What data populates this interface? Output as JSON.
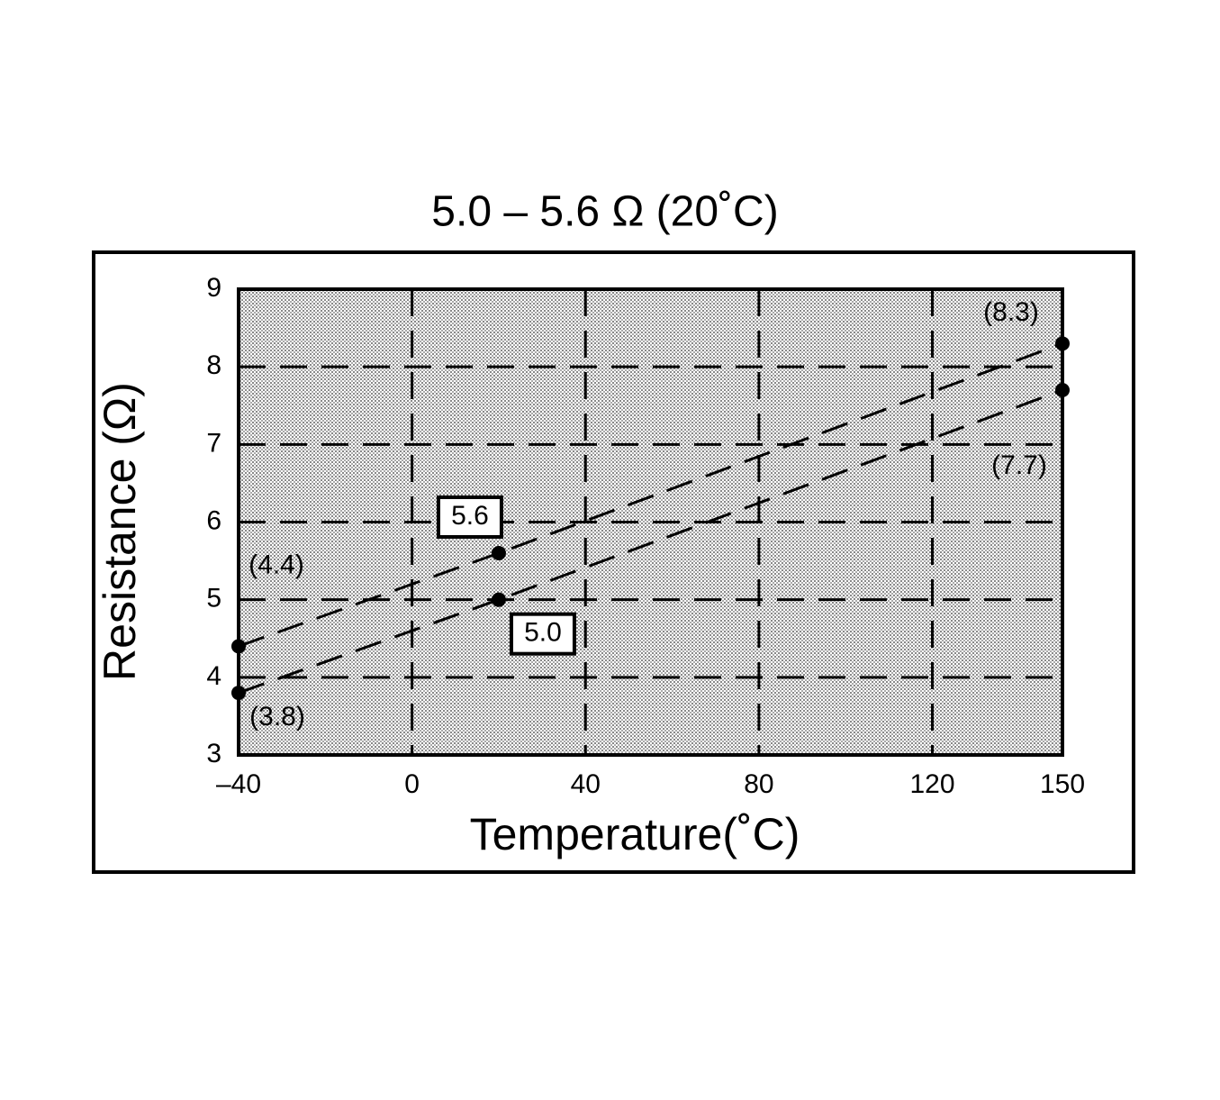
{
  "chart_data": {
    "type": "line",
    "title": "5.0 – 5.6 Ω (20˚C)",
    "x_label": "Temperature(˚C)",
    "y_label": "Resistance (Ω)",
    "x": [
      -40,
      20,
      150
    ],
    "series": [
      {
        "color": "#000000",
        "values": [
          4.4,
          5.6,
          8.3
        ],
        "value_labels": [
          "(4.4)",
          "5.6",
          "(8.3)"
        ]
      },
      {
        "color": "#000000",
        "values": [
          3.8,
          5.0,
          7.7
        ],
        "value_labels": [
          "(3.8)",
          "5.0",
          "(7.7)"
        ]
      }
    ],
    "xlim": [
      -40,
      150
    ],
    "xticks": [
      {
        "value": -40,
        "label": "–40"
      },
      0,
      40,
      80,
      120,
      150
    ],
    "ylim": [
      3,
      9
    ],
    "yticks": [
      3,
      4,
      5,
      6,
      7,
      8,
      9
    ],
    "grid": true
  }
}
